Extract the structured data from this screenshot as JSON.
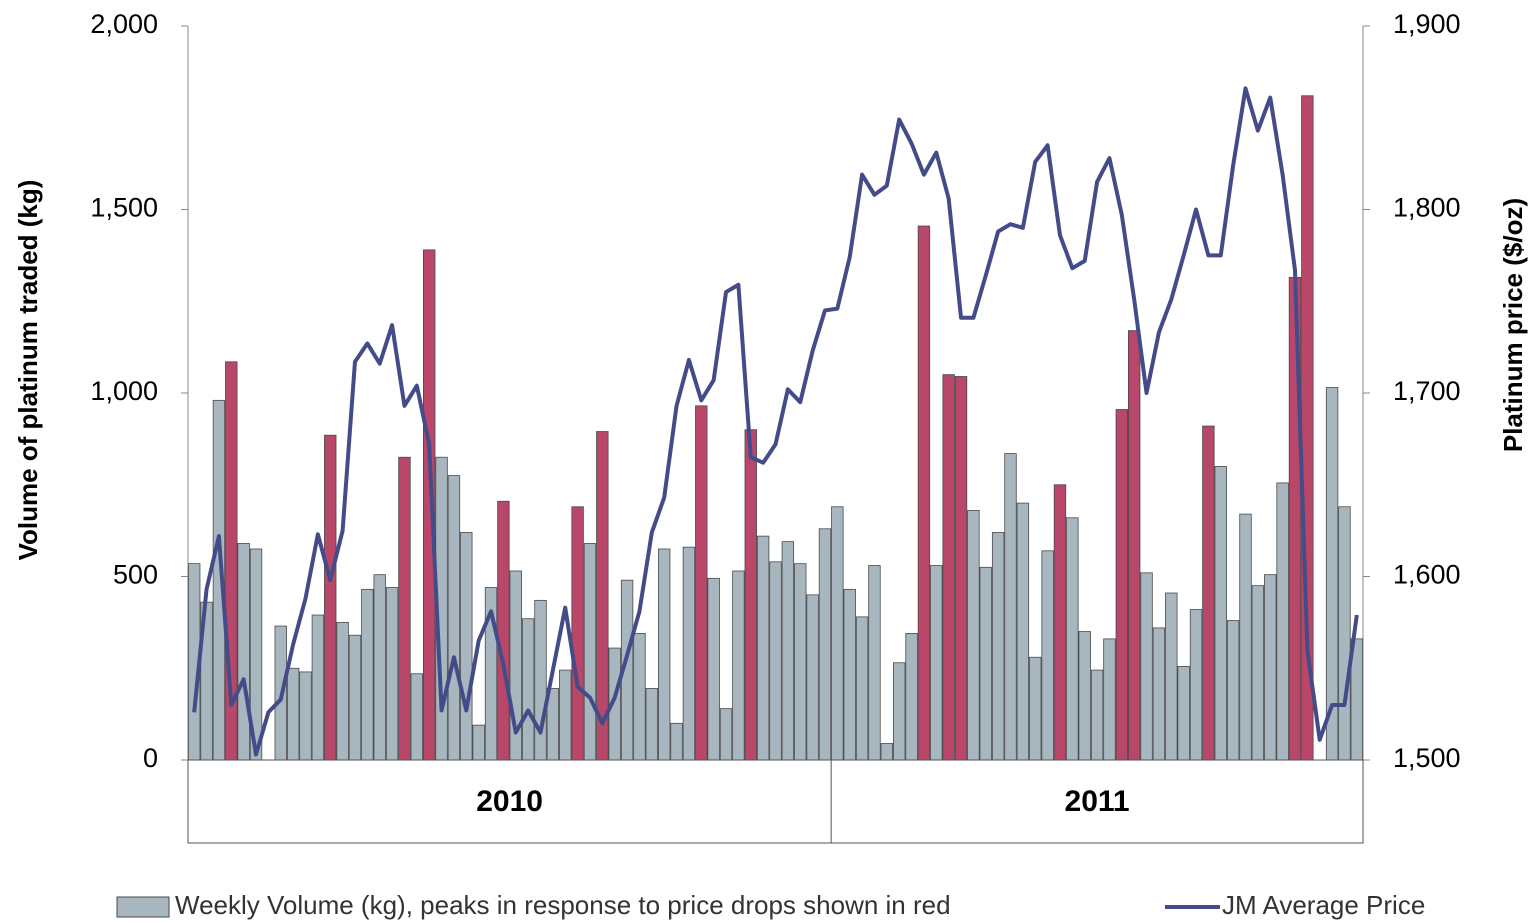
{
  "chart_data": {
    "type": "bar",
    "y_label": "Volume of platinum traded (kg)",
    "y2_label": "Platinum price ($/oz)",
    "categories": [
      null,
      null,
      null,
      null,
      null,
      null,
      null,
      null,
      null,
      null,
      null,
      null,
      null,
      null,
      null,
      null,
      null,
      null,
      null,
      null,
      null,
      null,
      null,
      null,
      null,
      null,
      null,
      null,
      null,
      null,
      null,
      null,
      null,
      null,
      null,
      null,
      null,
      null,
      null,
      null,
      null,
      null,
      null,
      null,
      null,
      null,
      null,
      null,
      null,
      null,
      null,
      null,
      null,
      null,
      null,
      null,
      null,
      null,
      null,
      null,
      null,
      null,
      null,
      null,
      null,
      null,
      null,
      null,
      null,
      null,
      null,
      null,
      null,
      null,
      null,
      null,
      null,
      null,
      null,
      null,
      null,
      null,
      null,
      null,
      null,
      null,
      null,
      null,
      null,
      null,
      null,
      null,
      null,
      null,
      null
    ],
    "groups": [
      {
        "label": "2010",
        "count": 52
      },
      {
        "label": "2011",
        "count": 43
      }
    ],
    "series": [
      {
        "name": "Weekly Volume (kg), peaks in response to price drops shown in red",
        "type": "bar",
        "axis": "y",
        "color": "#a8b6bf",
        "highlight_color": "#b8476a",
        "values": [
          535,
          430,
          980,
          1085,
          590,
          575,
          0,
          365,
          250,
          240,
          395,
          885,
          375,
          340,
          465,
          505,
          470,
          825,
          235,
          1390,
          825,
          775,
          620,
          95,
          470,
          705,
          515,
          385,
          435,
          195,
          245,
          690,
          590,
          895,
          305,
          490,
          345,
          195,
          575,
          100,
          580,
          965,
          495,
          140,
          515,
          900,
          610,
          540,
          595,
          535,
          450,
          630,
          690,
          465,
          390,
          530,
          45,
          265,
          345,
          1455,
          530,
          1050,
          1045,
          680,
          525,
          620,
          835,
          700,
          280,
          570,
          750,
          660,
          350,
          245,
          330,
          955,
          1170,
          510,
          360,
          455,
          255,
          410,
          910,
          800,
          380,
          670,
          475,
          505,
          755,
          1315,
          1810,
          0,
          1015,
          690,
          330
        ],
        "colors": [
          "#a8b6bf",
          "#a8b6bf",
          "#a8b6bf",
          "#b8476a",
          "#a8b6bf",
          "#a8b6bf",
          "#a8b6bf",
          "#a8b6bf",
          "#a8b6bf",
          "#a8b6bf",
          "#a8b6bf",
          "#b8476a",
          "#a8b6bf",
          "#a8b6bf",
          "#a8b6bf",
          "#a8b6bf",
          "#a8b6bf",
          "#b8476a",
          "#a8b6bf",
          "#b8476a",
          "#a8b6bf",
          "#a8b6bf",
          "#a8b6bf",
          "#a8b6bf",
          "#a8b6bf",
          "#b8476a",
          "#a8b6bf",
          "#a8b6bf",
          "#a8b6bf",
          "#a8b6bf",
          "#a8b6bf",
          "#b8476a",
          "#a8b6bf",
          "#b8476a",
          "#a8b6bf",
          "#a8b6bf",
          "#a8b6bf",
          "#a8b6bf",
          "#a8b6bf",
          "#a8b6bf",
          "#a8b6bf",
          "#b8476a",
          "#a8b6bf",
          "#a8b6bf",
          "#a8b6bf",
          "#b8476a",
          "#a8b6bf",
          "#a8b6bf",
          "#a8b6bf",
          "#a8b6bf",
          "#a8b6bf",
          "#a8b6bf",
          "#a8b6bf",
          "#a8b6bf",
          "#a8b6bf",
          "#a8b6bf",
          "#a8b6bf",
          "#a8b6bf",
          "#a8b6bf",
          "#b8476a",
          "#a8b6bf",
          "#b8476a",
          "#b8476a",
          "#a8b6bf",
          "#a8b6bf",
          "#a8b6bf",
          "#a8b6bf",
          "#a8b6bf",
          "#a8b6bf",
          "#a8b6bf",
          "#b8476a",
          "#a8b6bf",
          "#a8b6bf",
          "#a8b6bf",
          "#a8b6bf",
          "#b8476a",
          "#b8476a",
          "#a8b6bf",
          "#a8b6bf",
          "#a8b6bf",
          "#a8b6bf",
          "#a8b6bf",
          "#b8476a",
          "#a8b6bf",
          "#a8b6bf",
          "#a8b6bf",
          "#a8b6bf",
          "#a8b6bf",
          "#a8b6bf",
          "#b8476a",
          "#b8476a",
          "#a8b6bf",
          "#a8b6bf",
          "#a8b6bf",
          "#a8b6bf"
        ]
      },
      {
        "name": "JM Average Price",
        "type": "line",
        "axis": "y2",
        "color": "#434c89",
        "values": [
          1526,
          1593,
          1622,
          1530,
          1544,
          1503,
          1526,
          1533,
          1563,
          1588,
          1623,
          1598,
          1625,
          1717,
          1727,
          1716,
          1737,
          1693,
          1704,
          1672,
          1527,
          1556,
          1527,
          1565,
          1581,
          1552,
          1515,
          1527,
          1515,
          1549,
          1583,
          1540,
          1534,
          1520,
          1534,
          1557,
          1581,
          1624,
          1643,
          1693,
          1718,
          1696,
          1707,
          1755,
          1759,
          1665,
          1662,
          1672,
          1702,
          1695,
          1723,
          1745,
          1746,
          1774,
          1819,
          1808,
          1813,
          1849,
          1836,
          1819,
          1831,
          1806,
          1741,
          1741,
          1764,
          1788,
          1792,
          1790,
          1826,
          1835,
          1786,
          1768,
          1772,
          1815,
          1828,
          1797,
          1751,
          1700,
          1733,
          1751,
          1775,
          1800,
          1775,
          1775,
          1824,
          1866,
          1843,
          1861,
          1819,
          1767,
          1560,
          1511,
          1530,
          1530,
          1579
        ]
      }
    ],
    "ylim": [
      0,
      2000
    ],
    "yticks": [
      0,
      500,
      {
        "value": 1000,
        "label": "1,000"
      },
      {
        "value": 1500,
        "label": "1,500"
      },
      {
        "value": 2000,
        "label": "2,000"
      }
    ],
    "y2lim": [
      1500,
      1900
    ],
    "y2ticks": [
      {
        "value": 1500,
        "label": "1,500"
      },
      {
        "value": 1600,
        "label": "1,600"
      },
      {
        "value": 1700,
        "label": "1,700"
      },
      {
        "value": 1800,
        "label": "1,800"
      },
      {
        "value": 1900,
        "label": "1,900"
      }
    ],
    "grid": false,
    "legend": "bottom"
  }
}
